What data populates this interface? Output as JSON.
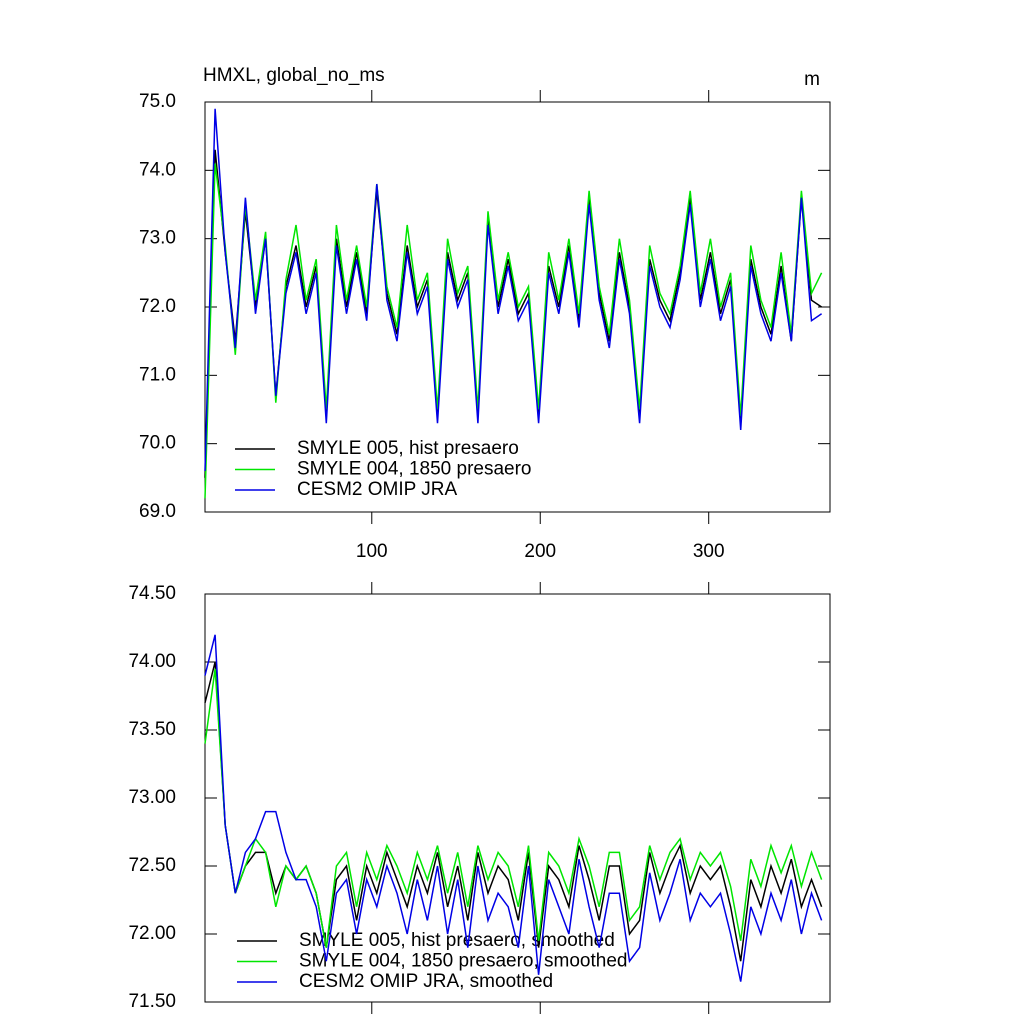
{
  "chart_data": [
    {
      "type": "line",
      "title": "HMXL, global_no_ms",
      "units": "m",
      "x": [
        1,
        7,
        13,
        19,
        25,
        31,
        37,
        43,
        49,
        55,
        61,
        67,
        73,
        79,
        85,
        91,
        97,
        103,
        109,
        115,
        121,
        127,
        133,
        139,
        145,
        151,
        157,
        163,
        169,
        175,
        181,
        187,
        193,
        199,
        205,
        211,
        217,
        223,
        229,
        235,
        241,
        247,
        253,
        259,
        265,
        271,
        277,
        283,
        289,
        295,
        301,
        307,
        313,
        319,
        325,
        331,
        337,
        343,
        349,
        355,
        361,
        367
      ],
      "series": [
        {
          "name": "SMYLE 005, hist presaero",
          "color": "#000000",
          "values": [
            69.5,
            74.3,
            72.8,
            71.5,
            73.4,
            72.0,
            73.0,
            70.7,
            72.3,
            72.9,
            72.0,
            72.6,
            70.4,
            73.0,
            72.0,
            72.8,
            71.9,
            73.7,
            72.2,
            71.6,
            72.9,
            72.0,
            72.4,
            70.4,
            72.8,
            72.1,
            72.5,
            70.4,
            73.3,
            72.0,
            72.7,
            71.9,
            72.2,
            70.4,
            72.6,
            72.0,
            72.9,
            71.8,
            73.6,
            72.2,
            71.5,
            72.8,
            72.0,
            70.4,
            72.7,
            72.1,
            71.8,
            72.5,
            73.6,
            72.1,
            72.8,
            71.9,
            72.4,
            70.3,
            72.7,
            72.0,
            71.6,
            72.6,
            71.5,
            73.6,
            72.1,
            72.0
          ]
        },
        {
          "name": "SMYLE 004, 1850 presaero",
          "color": "#00e600",
          "values": [
            69.2,
            74.1,
            72.9,
            71.3,
            73.5,
            72.1,
            73.1,
            70.6,
            72.4,
            73.2,
            72.1,
            72.7,
            70.5,
            73.2,
            72.1,
            72.9,
            72.0,
            73.8,
            72.3,
            71.7,
            73.2,
            72.1,
            72.5,
            70.5,
            73.0,
            72.2,
            72.6,
            70.5,
            73.4,
            72.1,
            72.8,
            72.0,
            72.3,
            70.5,
            72.8,
            72.1,
            73.0,
            71.9,
            73.7,
            72.3,
            71.6,
            73.0,
            72.1,
            70.5,
            72.9,
            72.2,
            71.9,
            72.6,
            73.7,
            72.2,
            73.0,
            72.0,
            72.5,
            70.4,
            72.9,
            72.1,
            71.7,
            72.8,
            71.6,
            73.7,
            72.2,
            72.5
          ]
        },
        {
          "name": "CESM2 OMIP JRA",
          "color": "#0000e6",
          "values": [
            69.6,
            74.9,
            72.8,
            71.4,
            73.6,
            71.9,
            73.0,
            70.7,
            72.2,
            72.8,
            71.9,
            72.5,
            70.3,
            72.9,
            71.9,
            72.7,
            71.8,
            73.8,
            72.1,
            71.5,
            72.8,
            71.9,
            72.3,
            70.3,
            72.7,
            72.0,
            72.4,
            70.3,
            73.2,
            71.9,
            72.6,
            71.8,
            72.1,
            70.3,
            72.5,
            71.9,
            72.8,
            71.7,
            73.5,
            72.1,
            71.4,
            72.7,
            71.9,
            70.3,
            72.6,
            72.0,
            71.7,
            72.4,
            73.5,
            72.0,
            72.7,
            71.8,
            72.3,
            70.2,
            72.6,
            71.9,
            71.5,
            72.5,
            71.5,
            73.6,
            71.8,
            71.9
          ]
        }
      ],
      "xlim": [
        1,
        372
      ],
      "xticks": [
        100,
        200,
        300
      ],
      "ylim": [
        69,
        75
      ],
      "yticks": [
        {
          "value": 69,
          "label": "69.0"
        },
        {
          "value": 70,
          "label": "70.0"
        },
        {
          "value": 71,
          "label": "71.0"
        },
        {
          "value": 72,
          "label": "72.0"
        },
        {
          "value": 73,
          "label": "73.0"
        },
        {
          "value": 74,
          "label": "74.0"
        },
        {
          "value": 75,
          "label": "75.0"
        }
      ]
    },
    {
      "type": "line",
      "x": [
        1,
        7,
        13,
        19,
        25,
        31,
        37,
        43,
        49,
        55,
        61,
        67,
        73,
        79,
        85,
        91,
        97,
        103,
        109,
        115,
        121,
        127,
        133,
        139,
        145,
        151,
        157,
        163,
        169,
        175,
        181,
        187,
        193,
        199,
        205,
        211,
        217,
        223,
        229,
        235,
        241,
        247,
        253,
        259,
        265,
        271,
        277,
        283,
        289,
        295,
        301,
        307,
        313,
        319,
        325,
        331,
        337,
        343,
        349,
        355,
        361,
        367
      ],
      "series": [
        {
          "name": "SMYLE 005, hist presaero, smoothed",
          "color": "#000000",
          "values": [
            73.7,
            74.0,
            72.8,
            72.3,
            72.5,
            72.6,
            72.6,
            72.3,
            72.5,
            72.4,
            72.5,
            72.3,
            71.9,
            72.4,
            72.5,
            72.1,
            72.5,
            72.3,
            72.6,
            72.4,
            72.2,
            72.5,
            72.3,
            72.6,
            72.2,
            72.5,
            72.1,
            72.6,
            72.3,
            72.5,
            72.4,
            72.1,
            72.6,
            71.9,
            72.5,
            72.4,
            72.2,
            72.65,
            72.4,
            72.1,
            72.5,
            72.5,
            72.0,
            72.1,
            72.6,
            72.3,
            72.5,
            72.65,
            72.3,
            72.5,
            72.4,
            72.5,
            72.2,
            71.8,
            72.4,
            72.2,
            72.5,
            72.3,
            72.55,
            72.2,
            72.4,
            72.2
          ]
        },
        {
          "name": "SMYLE 004, 1850 presaero, smoothed",
          "color": "#00e600",
          "values": [
            73.4,
            73.95,
            72.8,
            72.3,
            72.5,
            72.7,
            72.6,
            72.2,
            72.5,
            72.4,
            72.5,
            72.3,
            71.9,
            72.5,
            72.6,
            72.2,
            72.6,
            72.4,
            72.65,
            72.5,
            72.3,
            72.6,
            72.4,
            72.65,
            72.3,
            72.6,
            72.2,
            72.65,
            72.4,
            72.6,
            72.5,
            72.2,
            72.65,
            71.95,
            72.6,
            72.5,
            72.3,
            72.7,
            72.5,
            72.2,
            72.6,
            72.6,
            72.1,
            72.2,
            72.65,
            72.4,
            72.6,
            72.7,
            72.4,
            72.6,
            72.5,
            72.6,
            72.35,
            71.95,
            72.55,
            72.35,
            72.65,
            72.45,
            72.65,
            72.35,
            72.6,
            72.4
          ]
        },
        {
          "name": "CESM2 OMIP JRA, smoothed",
          "color": "#0000e6",
          "values": [
            73.9,
            74.2,
            72.8,
            72.3,
            72.6,
            72.7,
            72.9,
            72.9,
            72.6,
            72.4,
            72.4,
            72.2,
            71.8,
            72.3,
            72.4,
            72.0,
            72.4,
            72.2,
            72.5,
            72.3,
            72.0,
            72.4,
            72.1,
            72.5,
            72.0,
            72.4,
            71.9,
            72.5,
            72.1,
            72.3,
            72.2,
            71.9,
            72.5,
            71.7,
            72.4,
            72.2,
            72.0,
            72.55,
            72.2,
            71.9,
            72.3,
            72.3,
            71.8,
            71.9,
            72.45,
            72.1,
            72.3,
            72.55,
            72.1,
            72.3,
            72.2,
            72.3,
            72.0,
            71.65,
            72.2,
            72.0,
            72.3,
            72.1,
            72.4,
            72.0,
            72.3,
            72.1
          ]
        }
      ],
      "xlim": [
        1,
        372
      ],
      "xticks": [
        100,
        200,
        300
      ],
      "show_xtick_labels": false,
      "ylim": [
        71.5,
        74.5
      ],
      "yticks": [
        {
          "value": 71.5,
          "label": "71.50"
        },
        {
          "value": 72,
          "label": "72.00"
        },
        {
          "value": 72.5,
          "label": "72.50"
        },
        {
          "value": 73,
          "label": "73.00"
        },
        {
          "value": 73.5,
          "label": "73.50"
        },
        {
          "value": 74,
          "label": "74.00"
        },
        {
          "value": 74.5,
          "label": "74.50"
        }
      ]
    }
  ]
}
